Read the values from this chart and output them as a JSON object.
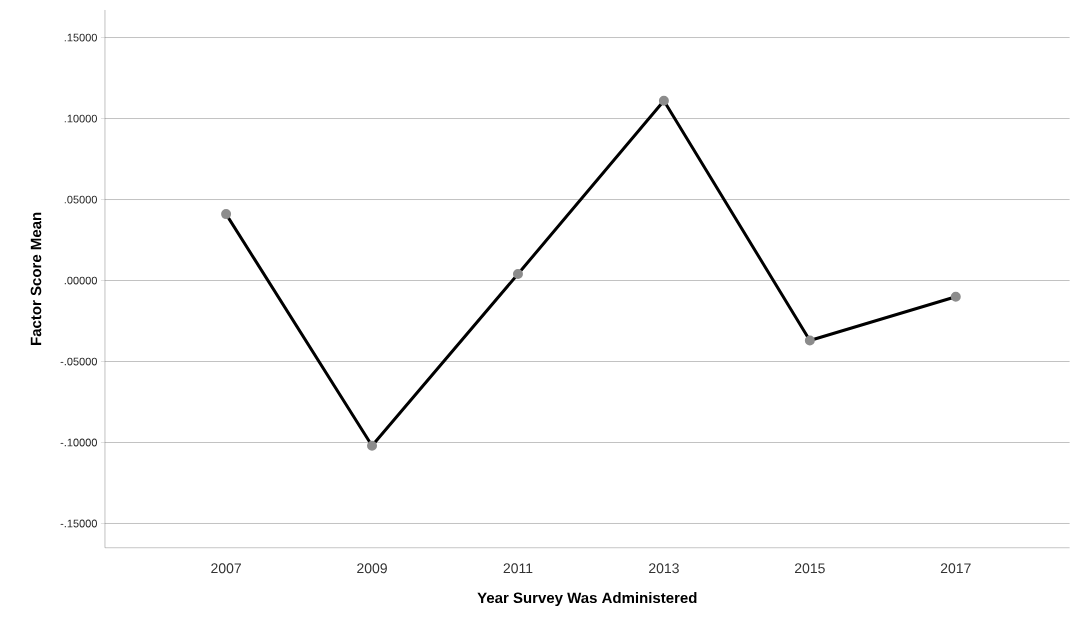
{
  "chart_data": {
    "type": "line",
    "xlabel": "Year Survey Was Administered",
    "ylabel": "Factor Score Mean",
    "categories": [
      "2007",
      "2009",
      "2011",
      "2013",
      "2015",
      "2017"
    ],
    "series": [
      {
        "color": "#000000",
        "values": [
          0.041,
          -0.102,
          0.004,
          0.111,
          -0.037,
          -0.01
        ]
      }
    ],
    "ylim": [
      -0.165,
      0.167
    ],
    "yticks": [
      {
        "value": -0.15,
        "label": "-.15000"
      },
      {
        "value": -0.1,
        "label": "-.10000"
      },
      {
        "value": -0.05,
        "label": "-.05000"
      },
      {
        "value": 0.0,
        "label": ".00000"
      },
      {
        "value": 0.05,
        "label": ".05000"
      },
      {
        "value": 0.1,
        "label": ".10000"
      },
      {
        "value": 0.15,
        "label": ".15000"
      }
    ],
    "grid": "y",
    "marker": "circle",
    "line_style": "solid"
  }
}
